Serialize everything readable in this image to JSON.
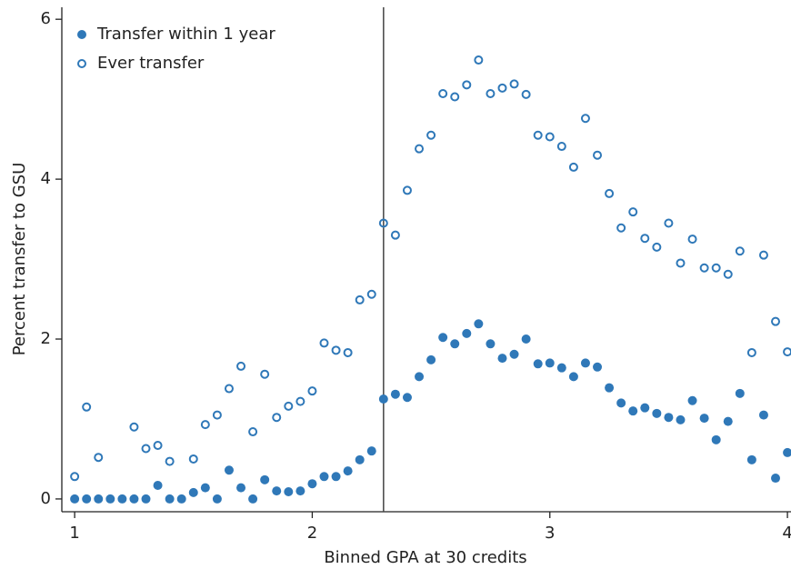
{
  "chart_data": {
    "type": "scatter",
    "x_label": "Binned GPA at 30 credits",
    "y_label": "Percent transfer to GSU",
    "x": [
      1.0,
      1.05,
      1.1,
      1.15,
      1.2,
      1.25,
      1.3,
      1.35,
      1.4,
      1.45,
      1.5,
      1.55,
      1.6,
      1.65,
      1.7,
      1.75,
      1.8,
      1.85,
      1.9,
      1.95,
      2.0,
      2.05,
      2.1,
      2.15,
      2.2,
      2.25,
      2.3,
      2.35,
      2.4,
      2.45,
      2.5,
      2.55,
      2.6,
      2.65,
      2.7,
      2.75,
      2.8,
      2.85,
      2.9,
      2.95,
      3.0,
      3.05,
      3.1,
      3.15,
      3.2,
      3.25,
      3.3,
      3.35,
      3.4,
      3.45,
      3.5,
      3.55,
      3.6,
      3.65,
      3.7,
      3.75,
      3.8,
      3.85,
      3.9,
      3.95,
      4.0
    ],
    "series": [
      {
        "name": "Transfer within 1 year",
        "color": "#2f78b8",
        "filled": true,
        "values": [
          0,
          0,
          0,
          0,
          0,
          0,
          0,
          0.17,
          0,
          0,
          0.08,
          0.14,
          0,
          0.36,
          0.14,
          0,
          0.24,
          0.1,
          0.09,
          0.1,
          0.19,
          0.28,
          0.28,
          0.35,
          0.49,
          0.6,
          1.25,
          1.31,
          1.27,
          1.53,
          1.74,
          2.02,
          1.94,
          2.07,
          2.19,
          1.94,
          1.76,
          1.81,
          2.0,
          1.69,
          1.7,
          1.64,
          1.53,
          1.7,
          1.65,
          1.39,
          1.2,
          1.1,
          1.14,
          1.07,
          1.02,
          0.99,
          1.23,
          1.01,
          0.74,
          0.97,
          1.32,
          0.49,
          1.05,
          0.26,
          0.58
        ]
      },
      {
        "name": "Ever transfer",
        "color": "#2f78b8",
        "filled": false,
        "values": [
          0.28,
          1.15,
          0.52,
          null,
          null,
          0.9,
          0.63,
          0.67,
          0.47,
          null,
          0.5,
          0.93,
          1.05,
          1.38,
          1.66,
          0.84,
          1.56,
          1.02,
          1.16,
          1.22,
          1.35,
          1.95,
          1.86,
          1.83,
          2.49,
          2.56,
          3.45,
          3.3,
          3.86,
          4.38,
          4.55,
          5.07,
          5.03,
          5.18,
          5.49,
          5.07,
          5.14,
          5.19,
          5.06,
          4.55,
          4.53,
          4.41,
          4.15,
          4.76,
          4.3,
          3.82,
          3.39,
          3.59,
          3.26,
          3.15,
          3.45,
          2.95,
          3.25,
          2.89,
          2.89,
          2.81,
          3.1,
          1.83,
          3.05,
          2.22,
          1.84
        ]
      }
    ],
    "xlim": [
      0.946,
      4.015
    ],
    "ylim": [
      -0.16,
      6.15
    ],
    "xticks": [
      1,
      2,
      3,
      4
    ],
    "yticks": [
      0,
      2,
      4,
      6
    ],
    "vline": 2.3,
    "legend": "top-left"
  }
}
